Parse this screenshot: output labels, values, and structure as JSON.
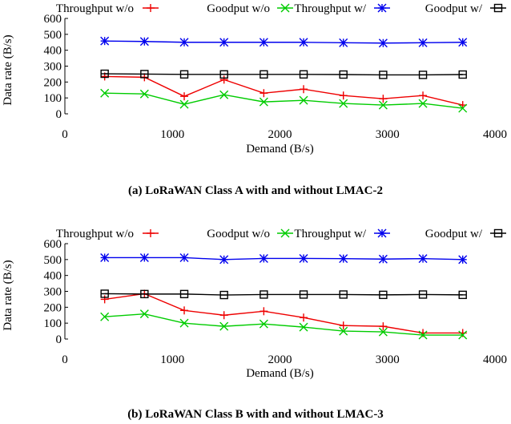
{
  "chart_data": [
    {
      "type": "line",
      "caption": "(a) LoRaWAN Class A with and without LMAC-2",
      "xlabel": "Demand (B/s)",
      "ylabel": "Data rate (B/s)",
      "xlim": [
        0,
        4000
      ],
      "ylim": [
        0,
        600
      ],
      "xticks": [
        0,
        1000,
        2000,
        3000,
        4000
      ],
      "yticks": [
        0,
        100,
        200,
        300,
        400,
        500,
        600
      ],
      "grid": false,
      "legend_position": "top",
      "x": [
        370,
        740,
        1110,
        1480,
        1850,
        2220,
        2590,
        2960,
        3330,
        3700
      ],
      "series": [
        {
          "name": "Throughput w/o",
          "marker": "plus",
          "color": "#ee0000",
          "values": [
            235,
            230,
            110,
            215,
            130,
            155,
            115,
            95,
            115,
            55
          ]
        },
        {
          "name": "Goodput w/o",
          "marker": "cross",
          "color": "#00cc00",
          "values": [
            130,
            125,
            60,
            120,
            75,
            85,
            65,
            55,
            65,
            35
          ]
        },
        {
          "name": "Throughput w/",
          "marker": "star",
          "color": "#0000ee",
          "values": [
            458,
            455,
            450,
            450,
            450,
            450,
            447,
            445,
            447,
            450
          ]
        },
        {
          "name": "Goodput w/",
          "marker": "square",
          "color": "#000000",
          "values": [
            252,
            250,
            248,
            248,
            248,
            248,
            247,
            245,
            245,
            247
          ]
        }
      ]
    },
    {
      "type": "line",
      "caption": "(b) LoRaWAN Class B with and without LMAC-3",
      "xlabel": "Demand (B/s)",
      "ylabel": "Data rate (B/s)",
      "xlim": [
        0,
        4000
      ],
      "ylim": [
        0,
        600
      ],
      "xticks": [
        0,
        1000,
        2000,
        3000,
        4000
      ],
      "yticks": [
        0,
        100,
        200,
        300,
        400,
        500,
        600
      ],
      "grid": false,
      "legend_position": "top",
      "x": [
        370,
        740,
        1110,
        1480,
        1850,
        2220,
        2590,
        2960,
        3330,
        3700
      ],
      "series": [
        {
          "name": "Throughput w/o",
          "marker": "plus",
          "color": "#ee0000",
          "values": [
            250,
            285,
            180,
            150,
            175,
            135,
            85,
            80,
            38,
            38
          ]
        },
        {
          "name": "Goodput w/o",
          "marker": "cross",
          "color": "#00cc00",
          "values": [
            140,
            158,
            100,
            80,
            95,
            75,
            50,
            45,
            25,
            25
          ]
        },
        {
          "name": "Throughput w/",
          "marker": "star",
          "color": "#0000ee",
          "values": [
            512,
            512,
            512,
            500,
            507,
            507,
            506,
            503,
            506,
            500
          ]
        },
        {
          "name": "Goodput w/",
          "marker": "square",
          "color": "#000000",
          "values": [
            285,
            283,
            283,
            277,
            280,
            280,
            280,
            278,
            280,
            278
          ]
        }
      ]
    }
  ]
}
